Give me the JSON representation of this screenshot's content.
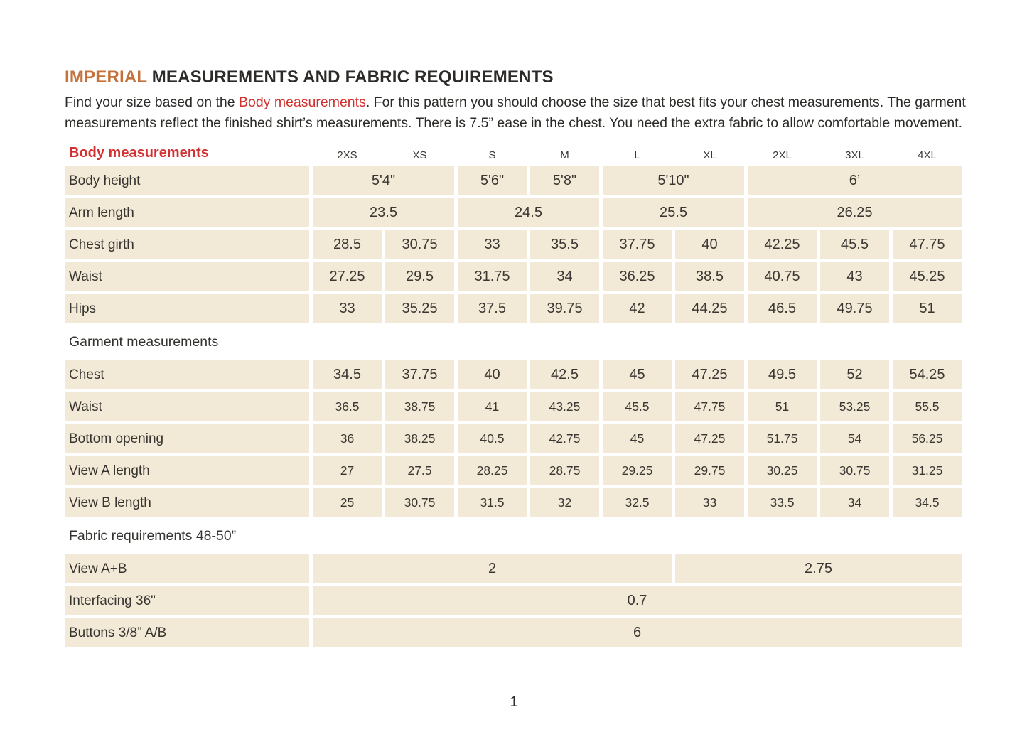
{
  "colors": {
    "accent_orange": "#c4713c",
    "accent_red": "#d33131",
    "cell_bg": "#f2e9d6",
    "text_dark": "#33312e"
  },
  "header": {
    "title_highlight": "IMPERIAL",
    "title_rest": "MEASUREMENTS AND FABRIC REQUIREMENTS"
  },
  "intro": {
    "before_link": "Find your size based on the ",
    "link": "Body measurements",
    "after_link": ". For this pattern you should choose the size that best fits your chest measurements. The garment measurements reflect the finished shirt’s measurements. There is 7.5” ease in the chest. You need the extra fabric to allow comfortable movement."
  },
  "table": {
    "corner_label": "Body measurements",
    "size_columns": [
      "2XS",
      "XS",
      "S",
      "M",
      "L",
      "XL",
      "2XL",
      "3XL",
      "4XL"
    ],
    "sections": [
      {
        "heading": null,
        "rows": [
          {
            "label": "Body height",
            "small": false,
            "cells": [
              {
                "v": "5'4\"",
                "span": 2
              },
              {
                "v": "5'6\"",
                "span": 1
              },
              {
                "v": "5'8\"",
                "span": 1
              },
              {
                "v": "5'10\"",
                "span": 2
              },
              {
                "v": "6’",
                "span": 3
              }
            ]
          },
          {
            "label": "Arm length",
            "small": false,
            "cells": [
              {
                "v": "23.5",
                "span": 2
              },
              {
                "v": "24.5",
                "span": 2
              },
              {
                "v": "25.5",
                "span": 2
              },
              {
                "v": "26.25",
                "span": 3
              }
            ]
          },
          {
            "label": "Chest girth",
            "small": false,
            "cells": [
              "28.5",
              "30.75",
              "33",
              "35.5",
              "37.75",
              "40",
              "42.25",
              "45.5",
              "47.75"
            ]
          },
          {
            "label": "Waist",
            "small": false,
            "cells": [
              "27.25",
              "29.5",
              "31.75",
              "34",
              "36.25",
              "38.5",
              "40.75",
              "43",
              "45.25"
            ]
          },
          {
            "label": "Hips",
            "small": false,
            "cells": [
              "33",
              "35.25",
              "37.5",
              "39.75",
              "42",
              "44.25",
              "46.5",
              "49.75",
              "51"
            ]
          }
        ]
      },
      {
        "heading": "Garment measurements",
        "rows": [
          {
            "label": "Chest",
            "small": false,
            "cells": [
              "34.5",
              "37.75",
              "40",
              "42.5",
              "45",
              "47.25",
              "49.5",
              "52",
              "54.25"
            ]
          },
          {
            "label": "Waist",
            "small": true,
            "cells": [
              "36.5",
              "38.75",
              "41",
              "43.25",
              "45.5",
              "47.75",
              "51",
              "53.25",
              "55.5"
            ]
          },
          {
            "label": "Bottom opening",
            "small": true,
            "cells": [
              "36",
              "38.25",
              "40.5",
              "42.75",
              "45",
              "47.25",
              "51.75",
              "54",
              "56.25"
            ]
          },
          {
            "label": "View A length",
            "small": true,
            "cells": [
              "27",
              "27.5",
              "28.25",
              "28.75",
              "29.25",
              "29.75",
              "30.25",
              "30.75",
              "31.25"
            ]
          },
          {
            "label": "View B length",
            "small": true,
            "cells": [
              "25",
              "30.75",
              "31.5",
              "32",
              "32.5",
              "33",
              "33.5",
              "34",
              "34.5"
            ]
          }
        ]
      },
      {
        "heading": "Fabric requirements 48-50”",
        "rows": [
          {
            "label": "View A+B",
            "small": false,
            "cells": [
              {
                "v": "2",
                "span": 5
              },
              {
                "v": "2.75",
                "span": 4
              }
            ]
          },
          {
            "label": "Interfacing 36\"",
            "small": false,
            "cells": [
              {
                "v": "0.7",
                "span": 9
              }
            ]
          },
          {
            "label": "Buttons 3/8” A/B",
            "small": false,
            "cells": [
              {
                "v": "6",
                "span": 9
              }
            ]
          }
        ]
      }
    ]
  },
  "footer": {
    "page_number": "1"
  }
}
